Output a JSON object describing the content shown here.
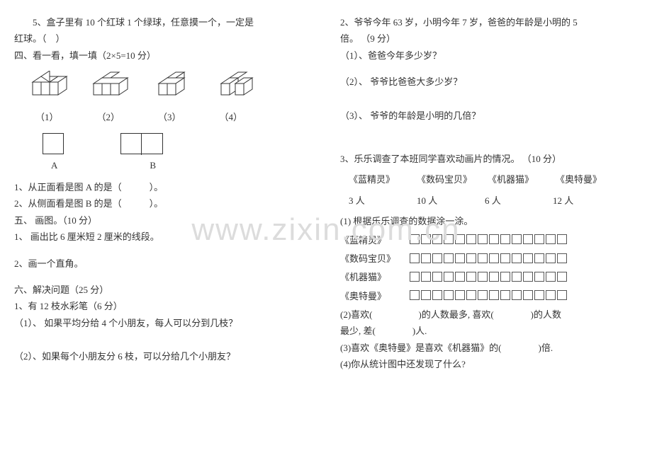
{
  "colors": {
    "text": "#333333",
    "bg": "#ffffff",
    "line": "#333333",
    "watermark": "#dcdcdc"
  },
  "fonts": {
    "body_pt": 13,
    "watermark_pt": 44
  },
  "watermark": "www.zixin.com.cn",
  "left": {
    "q5": "5、盒子里有 10 个红球 1 个绿球，任意摸一个，一定是",
    "q5b": "红球。（　）",
    "sec4": "四、看一看，填一填（2×5=10 分）",
    "cube_labels": [
      "（1）",
      "（2）",
      "（3）",
      "（4）"
    ],
    "ab": [
      "A",
      "B"
    ],
    "l1": "1、从正面看是图 A 的是（　　　）。",
    "l2": "2、从侧面看是图 B 的是（　　　）。",
    "sec5": "五、 画图。（10 分）",
    "d1": "1、 画出比 6 厘米短 2 厘米的线段。",
    "d2": "2、画一个直角。",
    "sec6": "六、解决问题（25 分）",
    "p1": "1、有 12 枝水彩笔（6 分）",
    "p1a": "（1）、 如果平均分给 4 个小朋友，每人可以分到几枝？",
    "p1b": "（2）、如果每个小朋友分 6 枝，可以分给几个小朋友？"
  },
  "right": {
    "q2a": "2、爷爷今年 63 岁，小明今年 7 岁，爸爸的年龄是小明的 5",
    "q2b": "倍。 （9 分）",
    "q2_1": "（1）、爸爸今年多少岁？",
    "q2_2": "（2）、 爷爷比爸爸大多少岁？",
    "q2_3": "（3）、 爷爷的年龄是小明的几倍？",
    "q3": "3、乐乐调查了本班同学喜欢动画片的情况。 （10 分）",
    "titles": [
      "《蓝精灵》",
      "《数码宝贝》",
      "《机器猫》",
      "《奥特曼》"
    ],
    "counts": [
      "3 人",
      "10 人",
      "6 人",
      "12 人"
    ],
    "s1": "(1) 根据乐乐调查的数据涂一涂。",
    "rows": [
      {
        "label": "《蓝精灵》",
        "n": 14
      },
      {
        "label": "《数码宝贝》",
        "n": 14
      },
      {
        "label": "《机器猫》",
        "n": 14
      },
      {
        "label": "《奥特曼》",
        "n": 14
      }
    ],
    "s2a": "(2)喜欢(　　　　　)的人数最多, 喜欢(　　　　)的人数",
    "s2b": "最少, 差(　　　　)人.",
    "s3": "(3)喜欢《奥特曼》是喜欢《机器猫》的(　　　　)倍.",
    "s4": "(4)你从统计图中还发现了什么?"
  }
}
